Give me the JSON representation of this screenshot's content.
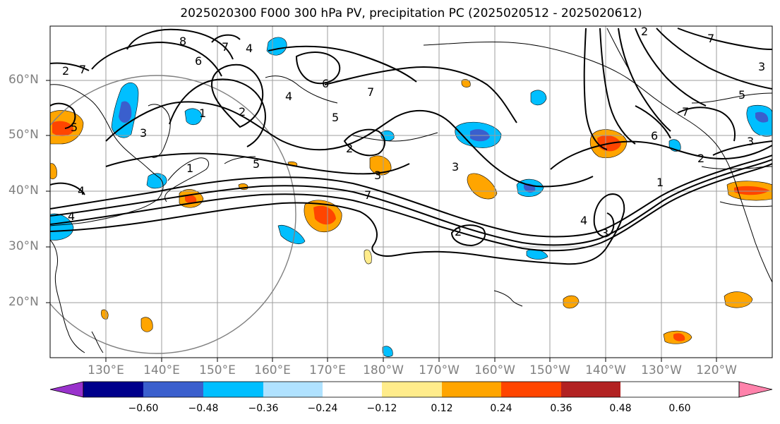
{
  "title": "2025020300 F000 300 hPa PV, precipitation PC (2025020512 - 2025020612)",
  "lat_labels": [
    "60°N",
    "50°N",
    "40°N",
    "30°N",
    "20°N"
  ],
  "lon_labels": [
    "130°E",
    "140°E",
    "150°E",
    "160°E",
    "170°E",
    "180°W",
    "170°W",
    "160°W",
    "150°W",
    "140°W",
    "130°W",
    "120°W"
  ],
  "colorbar": {
    "ticks": [
      "−0.60",
      "−0.48",
      "−0.36",
      "−0.24",
      "−0.12",
      "0.12",
      "0.24",
      "0.36",
      "0.48",
      "0.60"
    ],
    "colors": [
      "#9932cc",
      "#00008b",
      "#3a5fcd",
      "#00bfff",
      "#b0e2ff",
      "#ffffff",
      "#ffec8b",
      "#ffa500",
      "#ff4500",
      "#b22222",
      "#ff82ab"
    ]
  },
  "contour_labels": [
    "2",
    "7",
    "8",
    "6",
    "7",
    "4",
    "5",
    "1",
    "2",
    "3",
    "5",
    "1",
    "5",
    "2",
    "7",
    "4",
    "4",
    "3",
    "3",
    "2",
    "7",
    "4",
    "3",
    "6",
    "7",
    "5",
    "1",
    "2",
    "3",
    "7",
    "3",
    "2",
    "4",
    "6"
  ]
}
